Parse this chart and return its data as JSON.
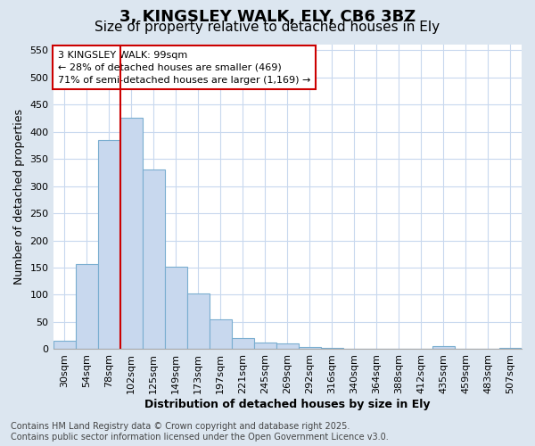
{
  "title_line1": "3, KINGSLEY WALK, ELY, CB6 3BZ",
  "title_line2": "Size of property relative to detached houses in Ely",
  "xlabel": "Distribution of detached houses by size in Ely",
  "ylabel": "Number of detached properties",
  "categories": [
    "30sqm",
    "54sqm",
    "78sqm",
    "102sqm",
    "125sqm",
    "149sqm",
    "173sqm",
    "197sqm",
    "221sqm",
    "245sqm",
    "269sqm",
    "292sqm",
    "316sqm",
    "340sqm",
    "364sqm",
    "388sqm",
    "412sqm",
    "435sqm",
    "459sqm",
    "483sqm",
    "507sqm"
  ],
  "values": [
    15,
    157,
    385,
    425,
    330,
    152,
    102,
    55,
    20,
    12,
    10,
    4,
    3,
    1,
    1,
    1,
    1,
    5,
    1,
    1,
    3
  ],
  "bar_color": "#c8d8ee",
  "bar_edge_color": "#7aaed0",
  "bar_width": 1.0,
  "ylim": [
    0,
    560
  ],
  "yticks": [
    0,
    50,
    100,
    150,
    200,
    250,
    300,
    350,
    400,
    450,
    500,
    550
  ],
  "vline_color": "#cc0000",
  "vline_index": 3,
  "annotation_text": "3 KINGSLEY WALK: 99sqm\n← 28% of detached houses are smaller (469)\n71% of semi-detached houses are larger (1,169) →",
  "annotation_box_color": "#cc0000",
  "footer_line1": "Contains HM Land Registry data © Crown copyright and database right 2025.",
  "footer_line2": "Contains public sector information licensed under the Open Government Licence v3.0.",
  "fig_bg_color": "#dce6f0",
  "plot_bg_color": "#ffffff",
  "grid_color": "#c8d8ee",
  "title1_fontsize": 13,
  "title2_fontsize": 11,
  "axis_label_fontsize": 9,
  "tick_fontsize": 8,
  "footer_fontsize": 7,
  "annotation_fontsize": 8
}
